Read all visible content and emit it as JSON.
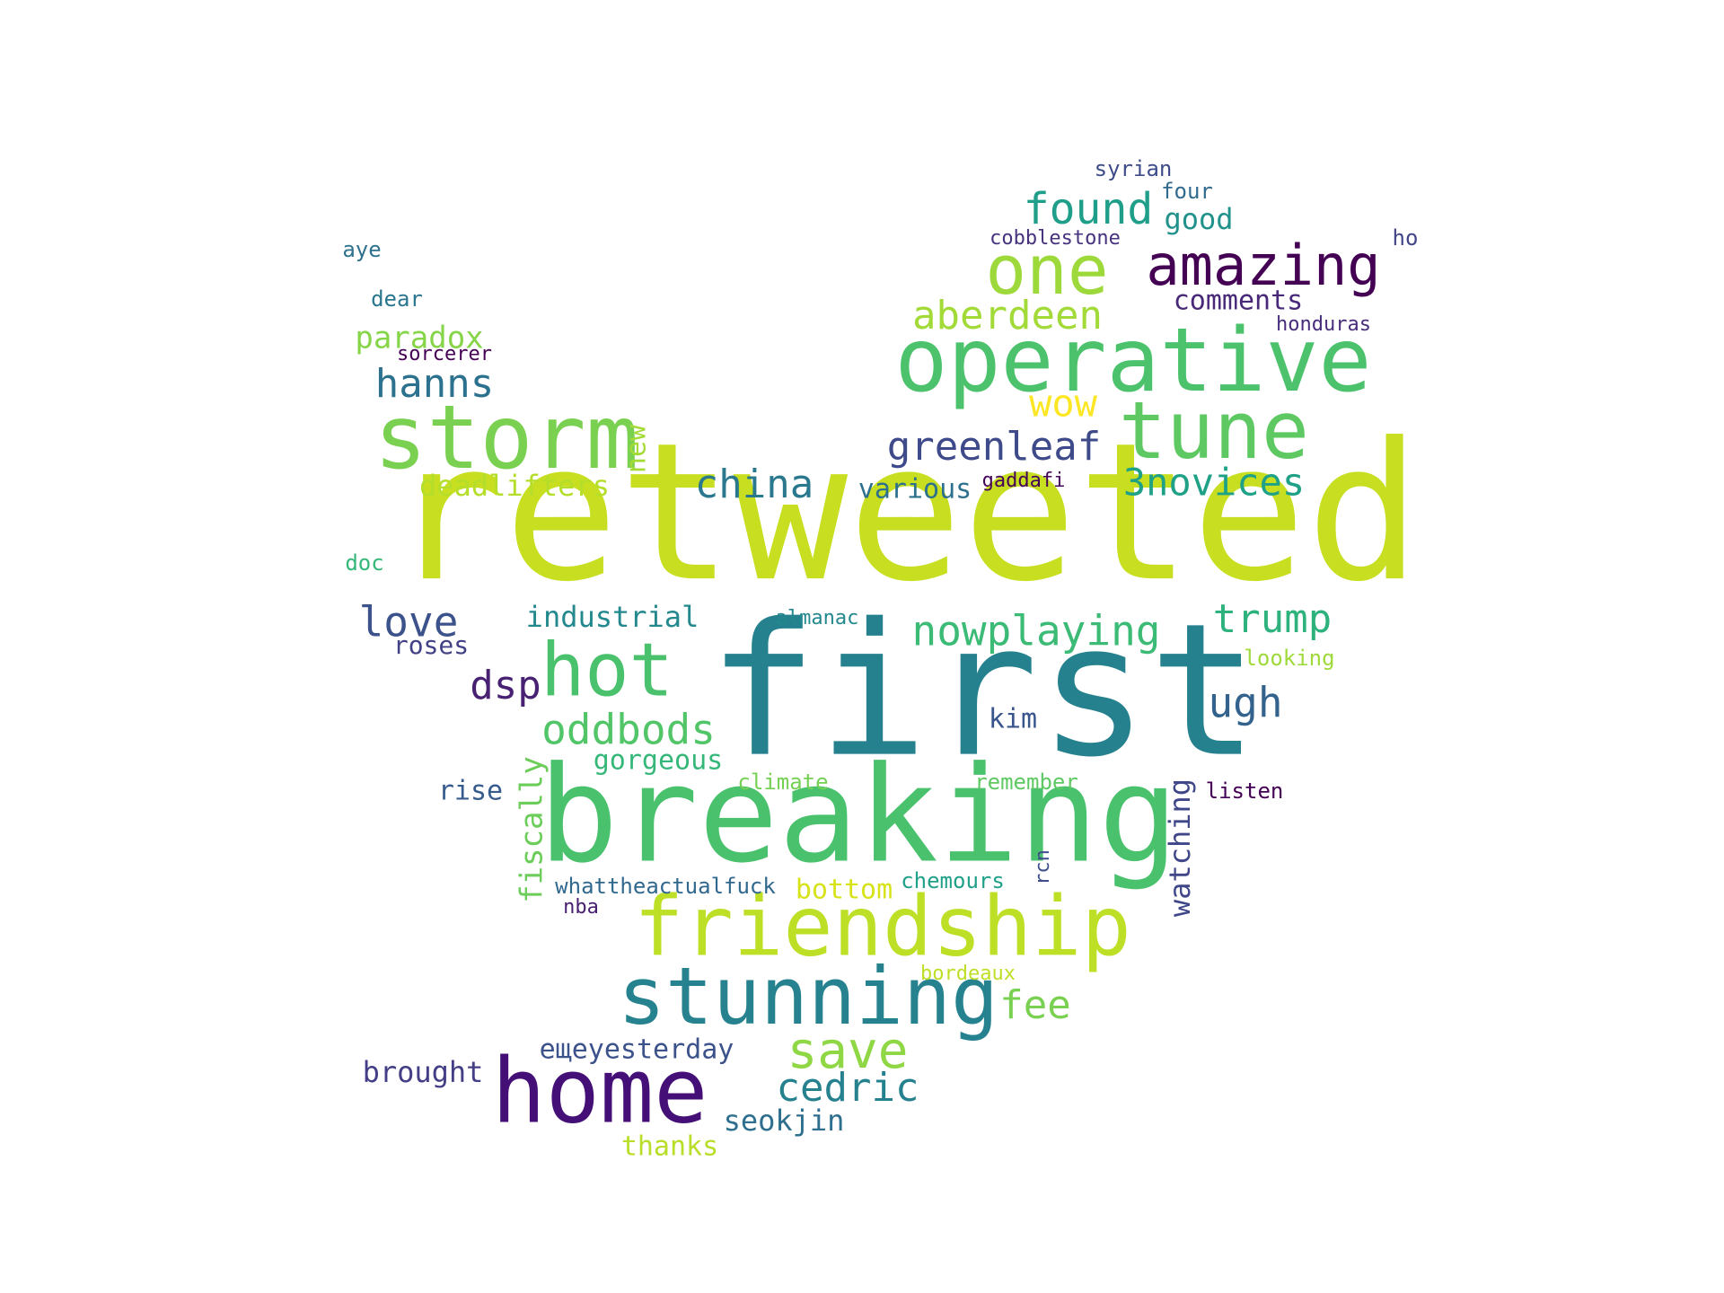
{
  "words": [
    {
      "text": "retweeted",
      "color": "#c8df21"
    },
    {
      "text": "first",
      "color": "#26818e"
    },
    {
      "text": "breaking",
      "color": "#4ac16d"
    },
    {
      "text": "operative",
      "color": "#4cc26c"
    },
    {
      "text": "storm",
      "color": "#7ad151"
    },
    {
      "text": "tune",
      "color": "#5ec962"
    },
    {
      "text": "friendship",
      "color": "#bddf26"
    },
    {
      "text": "stunning",
      "color": "#26828e"
    },
    {
      "text": "home",
      "color": "#440f76"
    },
    {
      "text": "hot",
      "color": "#4ac16d"
    },
    {
      "text": "one",
      "color": "#9dd93b"
    },
    {
      "text": "amazing",
      "color": "#440154"
    },
    {
      "text": "found",
      "color": "#1f9e89"
    },
    {
      "text": "aberdeen",
      "color": "#a2da37"
    },
    {
      "text": "greenleaf",
      "color": "#3e4a89"
    },
    {
      "text": "china",
      "color": "#2a788e"
    },
    {
      "text": "3novices",
      "color": "#1fa187"
    },
    {
      "text": "trump",
      "color": "#2db27d"
    },
    {
      "text": "nowplaying",
      "color": "#3bbb75"
    },
    {
      "text": "oddbods",
      "color": "#52c569"
    },
    {
      "text": "save",
      "color": "#8fd744"
    },
    {
      "text": "cedric",
      "color": "#26818e"
    },
    {
      "text": "fee",
      "color": "#7ad151"
    },
    {
      "text": "ugh",
      "color": "#33638d"
    },
    {
      "text": "dsp",
      "color": "#482173"
    },
    {
      "text": "love",
      "color": "#3b528b"
    },
    {
      "text": "hanns",
      "color": "#2c728e"
    },
    {
      "text": "wow",
      "color": "#fde725"
    },
    {
      "text": "good",
      "color": "#21918c"
    },
    {
      "text": "comments",
      "color": "#482878"
    },
    {
      "text": "four",
      "color": "#306a8e"
    },
    {
      "text": "syrian",
      "color": "#3e4c8a"
    },
    {
      "text": "cobblestone",
      "color": "#46327e"
    },
    {
      "text": "ho",
      "color": "#414487"
    },
    {
      "text": "honduras",
      "color": "#472d7b"
    },
    {
      "text": "aye",
      "color": "#2d718e"
    },
    {
      "text": "dear",
      "color": "#2a768e"
    },
    {
      "text": "paradox",
      "color": "#86d549"
    },
    {
      "text": "sorcerer",
      "color": "#440154"
    },
    {
      "text": "deadlifters",
      "color": "#b5de2b"
    },
    {
      "text": "new",
      "color": "#a5db36"
    },
    {
      "text": "various",
      "color": "#2d708e"
    },
    {
      "text": "gaddafi",
      "color": "#450559"
    },
    {
      "text": "industrial",
      "color": "#23898e"
    },
    {
      "text": "almanac",
      "color": "#23888e"
    },
    {
      "text": "roses",
      "color": "#424086"
    },
    {
      "text": "looking",
      "color": "#9fda3a"
    },
    {
      "text": "doc",
      "color": "#35b779"
    },
    {
      "text": "kim",
      "color": "#39568c"
    },
    {
      "text": "gorgeous",
      "color": "#35b779"
    },
    {
      "text": "fiscally",
      "color": "#6ccd5a"
    },
    {
      "text": "rise",
      "color": "#375b8d"
    },
    {
      "text": "climate",
      "color": "#75d054"
    },
    {
      "text": "remember",
      "color": "#5ec962"
    },
    {
      "text": "listen",
      "color": "#440154"
    },
    {
      "text": "watching",
      "color": "#3f4788"
    },
    {
      "text": "rcn",
      "color": "#3d4e8a"
    },
    {
      "text": "whattheactualfuck",
      "color": "#31688e"
    },
    {
      "text": "bottom",
      "color": "#d8e219"
    },
    {
      "text": "chemours",
      "color": "#1fa088"
    },
    {
      "text": "nba",
      "color": "#481f70"
    },
    {
      "text": "bordeaux",
      "color": "#bddf26"
    },
    {
      "text": "brought",
      "color": "#433e85"
    },
    {
      "text": "ещеyesterday",
      "color": "#3b528b"
    },
    {
      "text": "seokjin",
      "color": "#2e6e8e"
    },
    {
      "text": "thanks",
      "color": "#b8de29"
    }
  ]
}
